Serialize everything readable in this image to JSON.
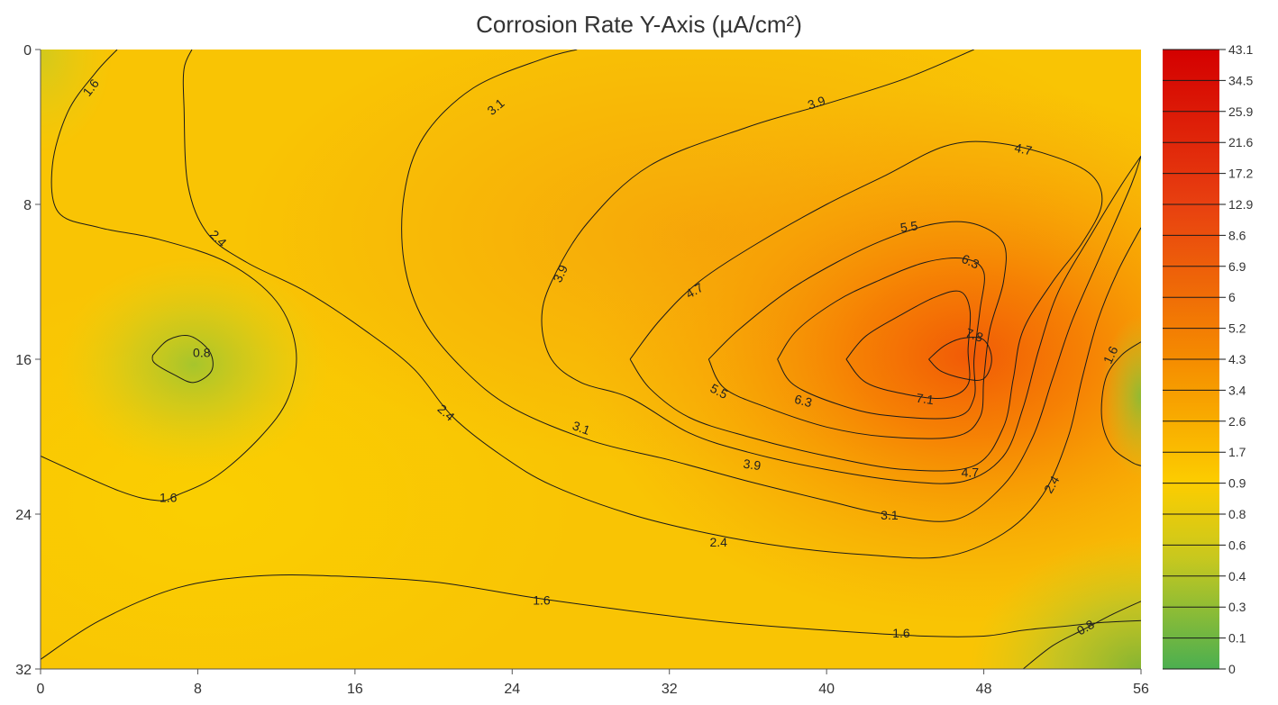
{
  "chart_data": {
    "type": "heatmap",
    "subtype": "contour",
    "title": "Corrosion Rate Y-Axis (µA/cm²)",
    "xlim": [
      0,
      56
    ],
    "ylim": [
      0,
      32
    ],
    "y_axis_inverted": true,
    "x_ticks": [
      "0",
      "8",
      "16",
      "24",
      "32",
      "40",
      "48",
      "56"
    ],
    "y_ticks": [
      "0",
      "8",
      "16",
      "24",
      "32"
    ],
    "colorbar": {
      "ticks": [
        "43.1",
        "34.5",
        "25.9",
        "21.6",
        "17.2",
        "12.9",
        "8.6",
        "6.9",
        "6",
        "5.2",
        "4.3",
        "3.4",
        "2.6",
        "1.7",
        "0.9",
        "0.8",
        "0.6",
        "0.4",
        "0.3",
        "0.1",
        "0"
      ],
      "colors": [
        "#d40000",
        "#f58c00",
        "#ffd400",
        "#4caf50"
      ]
    },
    "contour_levels": [
      {
        "value": 0.8,
        "label": "0.8",
        "points": [
          [
            5.7,
            15.8
          ],
          [
            6.5,
            15.0
          ],
          [
            7.6,
            14.8
          ],
          [
            8.6,
            15.6
          ],
          [
            8.7,
            16.6
          ],
          [
            7.8,
            17.2
          ],
          [
            6.8,
            16.8
          ],
          [
            5.8,
            16.2
          ],
          [
            5.7,
            15.8
          ]
        ]
      },
      {
        "value": 0.8,
        "label": "0.8",
        "points": [
          [
            50.0,
            32.0
          ],
          [
            51.5,
            30.8
          ],
          [
            53.0,
            30.0
          ],
          [
            54.5,
            29.2
          ],
          [
            56.0,
            28.5
          ]
        ]
      },
      {
        "value": 1.6,
        "label": "1.6",
        "points": [
          [
            3.9,
            0.0
          ],
          [
            2.8,
            1.2
          ],
          [
            1.4,
            3.2
          ],
          [
            0.6,
            6.0
          ],
          [
            0.9,
            8.4
          ],
          [
            3.0,
            9.2
          ],
          [
            6.0,
            9.8
          ],
          [
            9.5,
            11.0
          ],
          [
            12.0,
            13.0
          ],
          [
            13.0,
            15.5
          ],
          [
            12.6,
            18.0
          ],
          [
            11.2,
            20.0
          ],
          [
            9.0,
            22.0
          ],
          [
            7.0,
            23.0
          ],
          [
            6.0,
            23.3
          ],
          [
            4.0,
            22.8
          ],
          [
            0.0,
            21.0
          ]
        ]
      },
      {
        "value": 1.6,
        "label": "1.6",
        "points": [
          [
            0.0,
            31.5
          ],
          [
            3.0,
            29.5
          ],
          [
            7.0,
            27.8
          ],
          [
            11.0,
            27.2
          ],
          [
            15.0,
            27.2
          ],
          [
            20.0,
            27.5
          ],
          [
            25.0,
            28.3
          ],
          [
            30.0,
            29.0
          ],
          [
            35.0,
            29.6
          ],
          [
            40.0,
            30.0
          ],
          [
            45.0,
            30.3
          ],
          [
            48.0,
            30.3
          ],
          [
            50.0,
            30.0
          ],
          [
            52.0,
            29.8
          ],
          [
            54.0,
            29.6
          ],
          [
            56.0,
            29.5
          ]
        ]
      },
      {
        "value": 1.6,
        "label": "1.6",
        "points": [
          [
            56.0,
            15.1
          ],
          [
            55.0,
            15.8
          ],
          [
            54.2,
            17.0
          ],
          [
            54.0,
            19.0
          ],
          [
            54.5,
            20.5
          ],
          [
            55.5,
            21.3
          ],
          [
            56.0,
            21.5
          ]
        ]
      },
      {
        "value": 2.4,
        "label": "2.4",
        "points": [
          [
            7.7,
            0.0
          ],
          [
            7.3,
            1.0
          ],
          [
            7.3,
            3.0
          ],
          [
            7.5,
            7.0
          ],
          [
            8.5,
            9.5
          ],
          [
            10.5,
            11.0
          ],
          [
            13.5,
            12.5
          ],
          [
            16.5,
            14.5
          ],
          [
            19.0,
            16.5
          ],
          [
            21.0,
            19.0
          ],
          [
            23.5,
            21.0
          ],
          [
            26.0,
            22.5
          ],
          [
            30.0,
            24.0
          ],
          [
            34.0,
            25.0
          ],
          [
            38.0,
            25.7
          ],
          [
            42.0,
            26.1
          ],
          [
            46.0,
            26.2
          ],
          [
            49.0,
            25.0
          ],
          [
            51.0,
            23.0
          ],
          [
            52.3,
            20.0
          ],
          [
            53.0,
            17.0
          ],
          [
            53.8,
            14.0
          ],
          [
            54.8,
            11.5
          ],
          [
            56.0,
            9.2
          ]
        ]
      },
      {
        "value": 3.1,
        "label": "3.1",
        "points": [
          [
            27.3,
            0.0
          ],
          [
            25.5,
            0.5
          ],
          [
            22.0,
            2.0
          ],
          [
            19.5,
            4.5
          ],
          [
            18.5,
            7.5
          ],
          [
            18.5,
            11.0
          ],
          [
            19.5,
            14.0
          ],
          [
            21.5,
            16.5
          ],
          [
            24.0,
            18.5
          ],
          [
            28.0,
            20.2
          ],
          [
            32.0,
            21.2
          ],
          [
            36.0,
            22.3
          ],
          [
            40.0,
            23.3
          ],
          [
            43.0,
            24.0
          ],
          [
            46.5,
            24.3
          ],
          [
            49.0,
            22.5
          ],
          [
            50.5,
            20.0
          ],
          [
            51.5,
            17.0
          ],
          [
            52.5,
            14.0
          ],
          [
            54.0,
            10.5
          ],
          [
            55.5,
            7.0
          ],
          [
            56.0,
            5.5
          ]
        ]
      },
      {
        "value": 3.9,
        "label": "3.9",
        "points": [
          [
            47.5,
            0.0
          ],
          [
            44.0,
            1.5
          ],
          [
            40.0,
            2.8
          ],
          [
            36.0,
            4.0
          ],
          [
            31.0,
            6.0
          ],
          [
            27.8,
            9.0
          ],
          [
            26.0,
            12.0
          ],
          [
            25.5,
            14.0
          ],
          [
            26.0,
            16.0
          ],
          [
            27.5,
            17.2
          ],
          [
            30.0,
            18.0
          ],
          [
            33.0,
            19.8
          ],
          [
            36.0,
            20.8
          ],
          [
            40.0,
            21.7
          ],
          [
            44.0,
            22.3
          ],
          [
            47.0,
            22.3
          ],
          [
            49.0,
            21.0
          ],
          [
            50.0,
            18.5
          ],
          [
            50.8,
            15.5
          ],
          [
            51.8,
            12.5
          ],
          [
            53.5,
            9.5
          ],
          [
            55.0,
            7.0
          ],
          [
            56.0,
            5.5
          ]
        ]
      },
      {
        "value": 4.7,
        "label": "4.7",
        "points": [
          [
            30.0,
            16.0
          ],
          [
            31.5,
            14.0
          ],
          [
            33.5,
            12.0
          ],
          [
            36.5,
            10.0
          ],
          [
            40.0,
            8.0
          ],
          [
            43.0,
            6.5
          ],
          [
            46.0,
            5.0
          ],
          [
            48.5,
            4.8
          ],
          [
            51.5,
            5.5
          ],
          [
            53.5,
            6.5
          ],
          [
            54.0,
            8.0
          ],
          [
            53.0,
            10.0
          ],
          [
            51.5,
            12.0
          ],
          [
            50.0,
            14.5
          ],
          [
            49.5,
            17.0
          ],
          [
            49.0,
            19.5
          ],
          [
            47.5,
            21.5
          ],
          [
            44.0,
            21.7
          ],
          [
            40.0,
            21.0
          ],
          [
            36.0,
            20.0
          ],
          [
            33.0,
            19.0
          ],
          [
            31.0,
            17.5
          ],
          [
            30.0,
            16.0
          ]
        ]
      },
      {
        "value": 5.5,
        "label": "5.5",
        "points": [
          [
            34.0,
            16.0
          ],
          [
            35.5,
            14.5
          ],
          [
            38.0,
            12.5
          ],
          [
            40.5,
            11.0
          ],
          [
            43.0,
            9.8
          ],
          [
            45.5,
            9.0
          ],
          [
            47.5,
            9.0
          ],
          [
            49.0,
            10.0
          ],
          [
            49.0,
            12.0
          ],
          [
            48.3,
            14.5
          ],
          [
            48.0,
            17.0
          ],
          [
            47.8,
            19.0
          ],
          [
            46.5,
            20.0
          ],
          [
            43.0,
            20.0
          ],
          [
            40.0,
            19.5
          ],
          [
            37.0,
            18.5
          ],
          [
            34.8,
            17.5
          ],
          [
            34.0,
            16.0
          ]
        ]
      },
      {
        "value": 6.3,
        "label": "6.3",
        "points": [
          [
            37.5,
            16.0
          ],
          [
            38.5,
            14.5
          ],
          [
            40.5,
            13.0
          ],
          [
            42.5,
            12.0
          ],
          [
            45.0,
            11.0
          ],
          [
            47.0,
            10.8
          ],
          [
            48.0,
            11.5
          ],
          [
            47.8,
            13.5
          ],
          [
            47.5,
            16.0
          ],
          [
            47.5,
            18.0
          ],
          [
            46.5,
            19.0
          ],
          [
            43.0,
            18.9
          ],
          [
            40.5,
            18.3
          ],
          [
            38.3,
            17.3
          ],
          [
            37.5,
            16.0
          ]
        ]
      },
      {
        "value": 7.1,
        "label": "7.1",
        "points": [
          [
            41.0,
            16.0
          ],
          [
            42.0,
            14.8
          ],
          [
            43.8,
            13.7
          ],
          [
            45.5,
            12.8
          ],
          [
            46.8,
            12.5
          ],
          [
            47.3,
            13.5
          ],
          [
            47.2,
            15.5
          ],
          [
            47.2,
            17.3
          ],
          [
            46.0,
            18.0
          ],
          [
            44.0,
            17.8
          ],
          [
            42.0,
            17.2
          ],
          [
            41.0,
            16.0
          ]
        ]
      },
      {
        "value": 7.8,
        "label": "7.8",
        "points": [
          [
            45.2,
            16.0
          ],
          [
            46.0,
            15.3
          ],
          [
            47.0,
            14.9
          ],
          [
            48.0,
            15.0
          ],
          [
            48.4,
            16.0
          ],
          [
            48.0,
            17.0
          ],
          [
            47.0,
            17.0
          ],
          [
            45.8,
            16.6
          ],
          [
            45.2,
            16.0
          ]
        ]
      }
    ],
    "contour_label_positions": [
      {
        "label": "0.8",
        "x": 8.2,
        "y": 15.7
      },
      {
        "label": "0.8",
        "x": 53.2,
        "y": 29.9,
        "rotation": -30
      },
      {
        "label": "1.6",
        "x": 2.6,
        "y": 2.0,
        "rotation": -52
      },
      {
        "label": "1.6",
        "x": 6.5,
        "y": 23.2
      },
      {
        "label": "1.6",
        "x": 25.5,
        "y": 28.5
      },
      {
        "label": "1.6",
        "x": 43.8,
        "y": 30.2
      },
      {
        "label": "1.6",
        "x": 54.5,
        "y": 15.8,
        "rotation": -65
      },
      {
        "label": "2.4",
        "x": 9.0,
        "y": 9.8,
        "rotation": 45
      },
      {
        "label": "2.4",
        "x": 20.6,
        "y": 18.8,
        "rotation": 42
      },
      {
        "label": "2.4",
        "x": 34.5,
        "y": 25.5
      },
      {
        "label": "2.4",
        "x": 51.5,
        "y": 22.5,
        "rotation": -60
      },
      {
        "label": "3.1",
        "x": 23.2,
        "y": 3.0,
        "rotation": -40
      },
      {
        "label": "3.1",
        "x": 27.5,
        "y": 19.6,
        "rotation": 20
      },
      {
        "label": "3.1",
        "x": 43.2,
        "y": 24.1
      },
      {
        "label": "3.9",
        "x": 39.5,
        "y": 2.8,
        "rotation": -18
      },
      {
        "label": "3.9",
        "x": 26.5,
        "y": 11.6,
        "rotation": -65
      },
      {
        "label": "3.9",
        "x": 36.2,
        "y": 21.5,
        "rotation": 8
      },
      {
        "label": "4.7",
        "x": 50.0,
        "y": 5.2,
        "rotation": 12
      },
      {
        "label": "4.7",
        "x": 33.3,
        "y": 12.5,
        "rotation": -30
      },
      {
        "label": "4.7",
        "x": 47.3,
        "y": 21.9
      },
      {
        "label": "5.5",
        "x": 44.2,
        "y": 9.2,
        "rotation": -8
      },
      {
        "label": "5.5",
        "x": 34.5,
        "y": 17.7,
        "rotation": 28
      },
      {
        "label": "6.3",
        "x": 47.3,
        "y": 11.0,
        "rotation": 25
      },
      {
        "label": "6.3",
        "x": 38.8,
        "y": 18.2,
        "rotation": 15
      },
      {
        "label": "7.1",
        "x": 45.0,
        "y": 18.1,
        "rotation": 8
      },
      {
        "label": "7.8",
        "x": 47.5,
        "y": 14.8,
        "rotation": 20
      }
    ]
  }
}
